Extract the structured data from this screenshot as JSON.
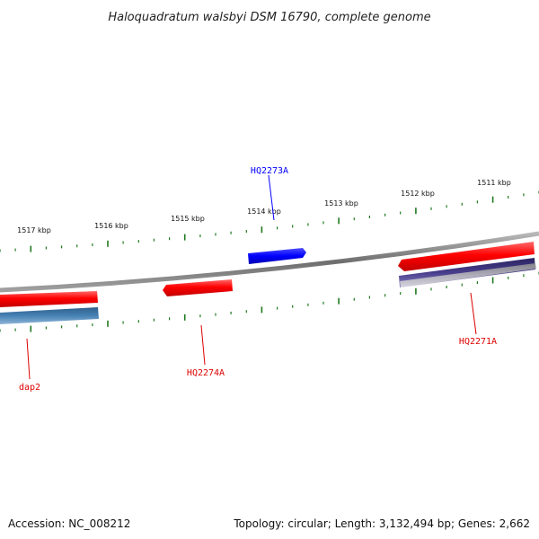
{
  "title": "Haloquadratum walsbyi DSM 16790, complete genome",
  "kbp_labels": [
    "1517 kbp",
    "1516 kbp",
    "1515 kbp",
    "1514 kbp",
    "1513 kbp",
    "1512 kbp",
    "1511 kbp"
  ],
  "genes": [
    {
      "name": "HQ2273A",
      "color": "#0000ff"
    },
    {
      "name": "HQ2274A",
      "color": "#dd0000"
    },
    {
      "name": "dap2",
      "color": "#dd0000"
    },
    {
      "name": "HQ2271A",
      "color": "#dd0000"
    }
  ],
  "colors": {
    "backbone": "#808080",
    "red_gene": "#ff0000",
    "blue_gene": "#0000ff",
    "steelblue_gene": "#4682b4",
    "purple_gene": "#483d8b",
    "gray_gene": "#b0b0b0",
    "ticks": "#1f7a1f"
  },
  "footer": {
    "accession": "Accession: NC_008212",
    "topology": "Topology: circular; Length: 3,132,494 bp; Genes: 2,662"
  }
}
